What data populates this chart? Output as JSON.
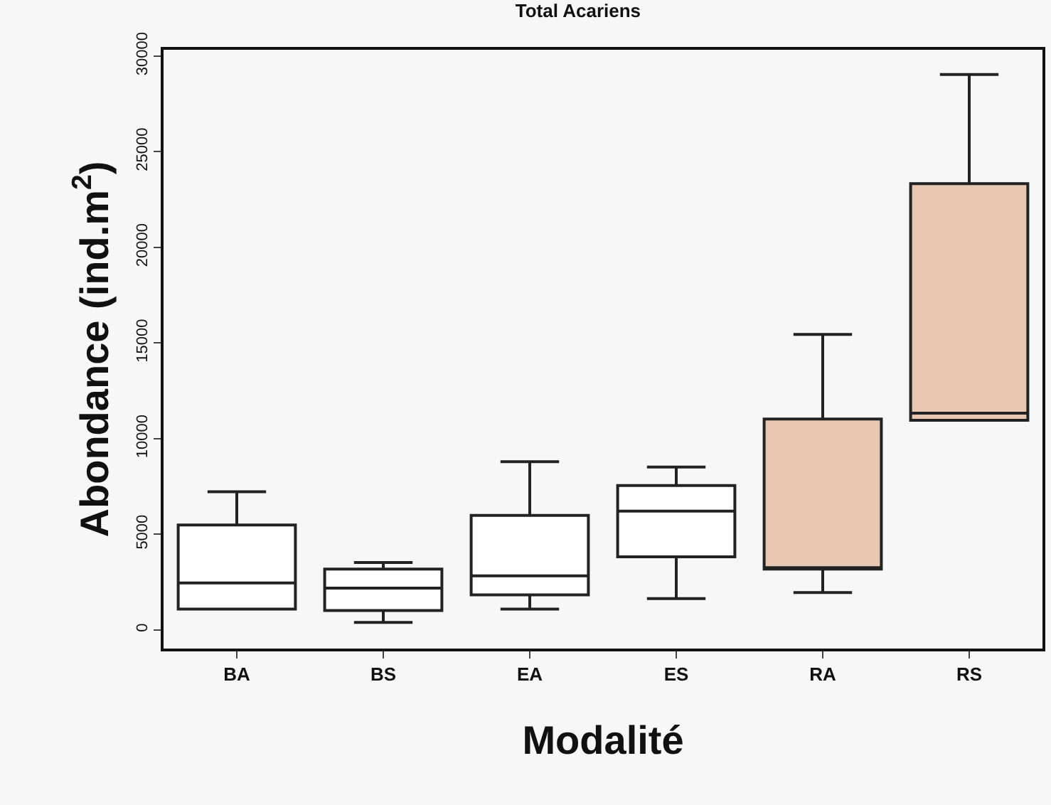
{
  "chart_data": {
    "type": "box",
    "title": "Total Acariens",
    "xlabel": "Modalité",
    "ylabel": "Abondance (ind.m$^{2}$)",
    "categories": [
      "BA",
      "BS",
      "EA",
      "ES",
      "RA",
      "RS"
    ],
    "colors": [
      "#ffffff",
      "#ffffff",
      "#ffffff",
      "#ffffff",
      "#e8c8b2",
      "#e8c8b2"
    ],
    "boxes": [
      {
        "low": 1090,
        "q1": 1090,
        "median": 2460,
        "q3": 5490,
        "high": 7230
      },
      {
        "low": 400,
        "q1": 1020,
        "median": 2190,
        "q3": 3180,
        "high": 3530
      },
      {
        "low": 1090,
        "q1": 1840,
        "median": 2830,
        "q3": 5990,
        "high": 8800
      },
      {
        "low": 1640,
        "q1": 3830,
        "median": 6210,
        "q3": 7550,
        "high": 8520
      },
      {
        "low": 1960,
        "q1": 3180,
        "median": 3180,
        "q3": 11030,
        "high": 15450
      },
      {
        "low": 10960,
        "q1": 10960,
        "median": 11330,
        "q3": 23330,
        "high": 29040
      }
    ],
    "ylim": [
      -970,
      30330
    ],
    "yticks": [
      0,
      5000,
      10000,
      15000,
      20000,
      25000,
      30000
    ],
    "grid": false
  }
}
